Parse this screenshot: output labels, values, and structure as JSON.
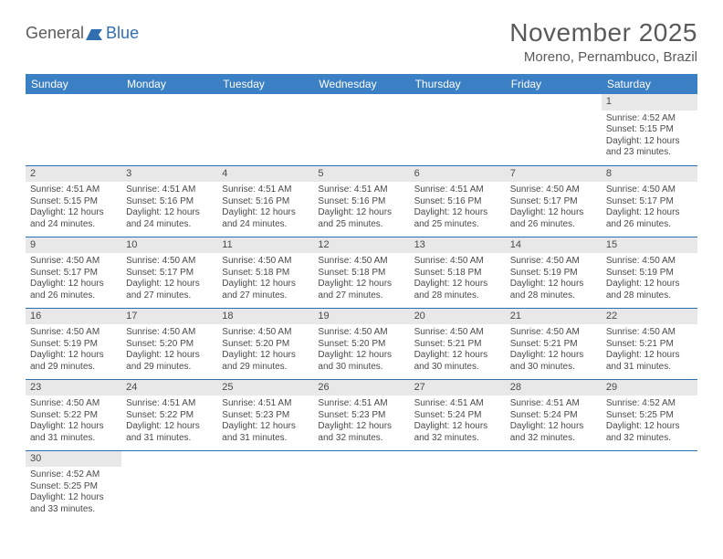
{
  "logo": {
    "text1": "General",
    "text2": "Blue"
  },
  "title": "November 2025",
  "location": "Moreno, Pernambuco, Brazil",
  "colors": {
    "header_bg": "#3b7fc4",
    "header_text": "#ffffff",
    "rule": "#2f6fb0",
    "dayhead_bg": "#e8e8e8",
    "text": "#4a4a4a",
    "logo_blue": "#2f6fb0"
  },
  "weekdays": [
    "Sunday",
    "Monday",
    "Tuesday",
    "Wednesday",
    "Thursday",
    "Friday",
    "Saturday"
  ],
  "weeks": [
    [
      null,
      null,
      null,
      null,
      null,
      null,
      {
        "n": "1",
        "sr": "Sunrise: 4:52 AM",
        "ss": "Sunset: 5:15 PM",
        "d1": "Daylight: 12 hours",
        "d2": "and 23 minutes."
      }
    ],
    [
      {
        "n": "2",
        "sr": "Sunrise: 4:51 AM",
        "ss": "Sunset: 5:15 PM",
        "d1": "Daylight: 12 hours",
        "d2": "and 24 minutes."
      },
      {
        "n": "3",
        "sr": "Sunrise: 4:51 AM",
        "ss": "Sunset: 5:16 PM",
        "d1": "Daylight: 12 hours",
        "d2": "and 24 minutes."
      },
      {
        "n": "4",
        "sr": "Sunrise: 4:51 AM",
        "ss": "Sunset: 5:16 PM",
        "d1": "Daylight: 12 hours",
        "d2": "and 24 minutes."
      },
      {
        "n": "5",
        "sr": "Sunrise: 4:51 AM",
        "ss": "Sunset: 5:16 PM",
        "d1": "Daylight: 12 hours",
        "d2": "and 25 minutes."
      },
      {
        "n": "6",
        "sr": "Sunrise: 4:51 AM",
        "ss": "Sunset: 5:16 PM",
        "d1": "Daylight: 12 hours",
        "d2": "and 25 minutes."
      },
      {
        "n": "7",
        "sr": "Sunrise: 4:50 AM",
        "ss": "Sunset: 5:17 PM",
        "d1": "Daylight: 12 hours",
        "d2": "and 26 minutes."
      },
      {
        "n": "8",
        "sr": "Sunrise: 4:50 AM",
        "ss": "Sunset: 5:17 PM",
        "d1": "Daylight: 12 hours",
        "d2": "and 26 minutes."
      }
    ],
    [
      {
        "n": "9",
        "sr": "Sunrise: 4:50 AM",
        "ss": "Sunset: 5:17 PM",
        "d1": "Daylight: 12 hours",
        "d2": "and 26 minutes."
      },
      {
        "n": "10",
        "sr": "Sunrise: 4:50 AM",
        "ss": "Sunset: 5:17 PM",
        "d1": "Daylight: 12 hours",
        "d2": "and 27 minutes."
      },
      {
        "n": "11",
        "sr": "Sunrise: 4:50 AM",
        "ss": "Sunset: 5:18 PM",
        "d1": "Daylight: 12 hours",
        "d2": "and 27 minutes."
      },
      {
        "n": "12",
        "sr": "Sunrise: 4:50 AM",
        "ss": "Sunset: 5:18 PM",
        "d1": "Daylight: 12 hours",
        "d2": "and 27 minutes."
      },
      {
        "n": "13",
        "sr": "Sunrise: 4:50 AM",
        "ss": "Sunset: 5:18 PM",
        "d1": "Daylight: 12 hours",
        "d2": "and 28 minutes."
      },
      {
        "n": "14",
        "sr": "Sunrise: 4:50 AM",
        "ss": "Sunset: 5:19 PM",
        "d1": "Daylight: 12 hours",
        "d2": "and 28 minutes."
      },
      {
        "n": "15",
        "sr": "Sunrise: 4:50 AM",
        "ss": "Sunset: 5:19 PM",
        "d1": "Daylight: 12 hours",
        "d2": "and 28 minutes."
      }
    ],
    [
      {
        "n": "16",
        "sr": "Sunrise: 4:50 AM",
        "ss": "Sunset: 5:19 PM",
        "d1": "Daylight: 12 hours",
        "d2": "and 29 minutes."
      },
      {
        "n": "17",
        "sr": "Sunrise: 4:50 AM",
        "ss": "Sunset: 5:20 PM",
        "d1": "Daylight: 12 hours",
        "d2": "and 29 minutes."
      },
      {
        "n": "18",
        "sr": "Sunrise: 4:50 AM",
        "ss": "Sunset: 5:20 PM",
        "d1": "Daylight: 12 hours",
        "d2": "and 29 minutes."
      },
      {
        "n": "19",
        "sr": "Sunrise: 4:50 AM",
        "ss": "Sunset: 5:20 PM",
        "d1": "Daylight: 12 hours",
        "d2": "and 30 minutes."
      },
      {
        "n": "20",
        "sr": "Sunrise: 4:50 AM",
        "ss": "Sunset: 5:21 PM",
        "d1": "Daylight: 12 hours",
        "d2": "and 30 minutes."
      },
      {
        "n": "21",
        "sr": "Sunrise: 4:50 AM",
        "ss": "Sunset: 5:21 PM",
        "d1": "Daylight: 12 hours",
        "d2": "and 30 minutes."
      },
      {
        "n": "22",
        "sr": "Sunrise: 4:50 AM",
        "ss": "Sunset: 5:21 PM",
        "d1": "Daylight: 12 hours",
        "d2": "and 31 minutes."
      }
    ],
    [
      {
        "n": "23",
        "sr": "Sunrise: 4:50 AM",
        "ss": "Sunset: 5:22 PM",
        "d1": "Daylight: 12 hours",
        "d2": "and 31 minutes."
      },
      {
        "n": "24",
        "sr": "Sunrise: 4:51 AM",
        "ss": "Sunset: 5:22 PM",
        "d1": "Daylight: 12 hours",
        "d2": "and 31 minutes."
      },
      {
        "n": "25",
        "sr": "Sunrise: 4:51 AM",
        "ss": "Sunset: 5:23 PM",
        "d1": "Daylight: 12 hours",
        "d2": "and 31 minutes."
      },
      {
        "n": "26",
        "sr": "Sunrise: 4:51 AM",
        "ss": "Sunset: 5:23 PM",
        "d1": "Daylight: 12 hours",
        "d2": "and 32 minutes."
      },
      {
        "n": "27",
        "sr": "Sunrise: 4:51 AM",
        "ss": "Sunset: 5:24 PM",
        "d1": "Daylight: 12 hours",
        "d2": "and 32 minutes."
      },
      {
        "n": "28",
        "sr": "Sunrise: 4:51 AM",
        "ss": "Sunset: 5:24 PM",
        "d1": "Daylight: 12 hours",
        "d2": "and 32 minutes."
      },
      {
        "n": "29",
        "sr": "Sunrise: 4:52 AM",
        "ss": "Sunset: 5:25 PM",
        "d1": "Daylight: 12 hours",
        "d2": "and 32 minutes."
      }
    ],
    [
      {
        "n": "30",
        "sr": "Sunrise: 4:52 AM",
        "ss": "Sunset: 5:25 PM",
        "d1": "Daylight: 12 hours",
        "d2": "and 33 minutes."
      },
      null,
      null,
      null,
      null,
      null,
      null
    ]
  ]
}
